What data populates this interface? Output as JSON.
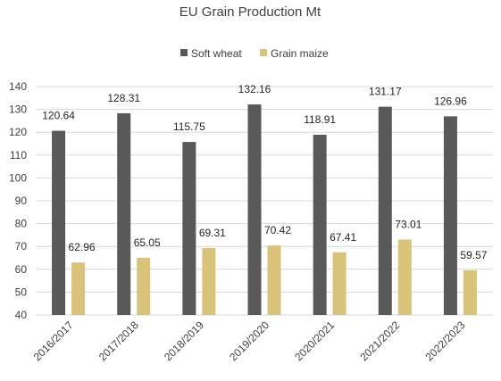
{
  "chart_data": {
    "type": "bar",
    "title": "EU Grain Production Mt",
    "xlabel": "",
    "ylabel": "",
    "ylim": [
      40,
      140
    ],
    "ytick_step": 10,
    "grid": true,
    "legend_position": "top",
    "categories": [
      "2016/2017",
      "2017/2018",
      "2018/2019",
      "2019/2020",
      "2020/2021",
      "2021/2022",
      "2022/2023"
    ],
    "series": [
      {
        "name": "Soft wheat",
        "color": "#595959",
        "values": [
          120.64,
          128.31,
          115.75,
          132.16,
          118.91,
          131.17,
          126.96
        ]
      },
      {
        "name": "Grain maize",
        "color": "#d9c27a",
        "values": [
          62.96,
          65.05,
          69.31,
          70.42,
          67.41,
          73.01,
          59.57
        ]
      }
    ]
  }
}
